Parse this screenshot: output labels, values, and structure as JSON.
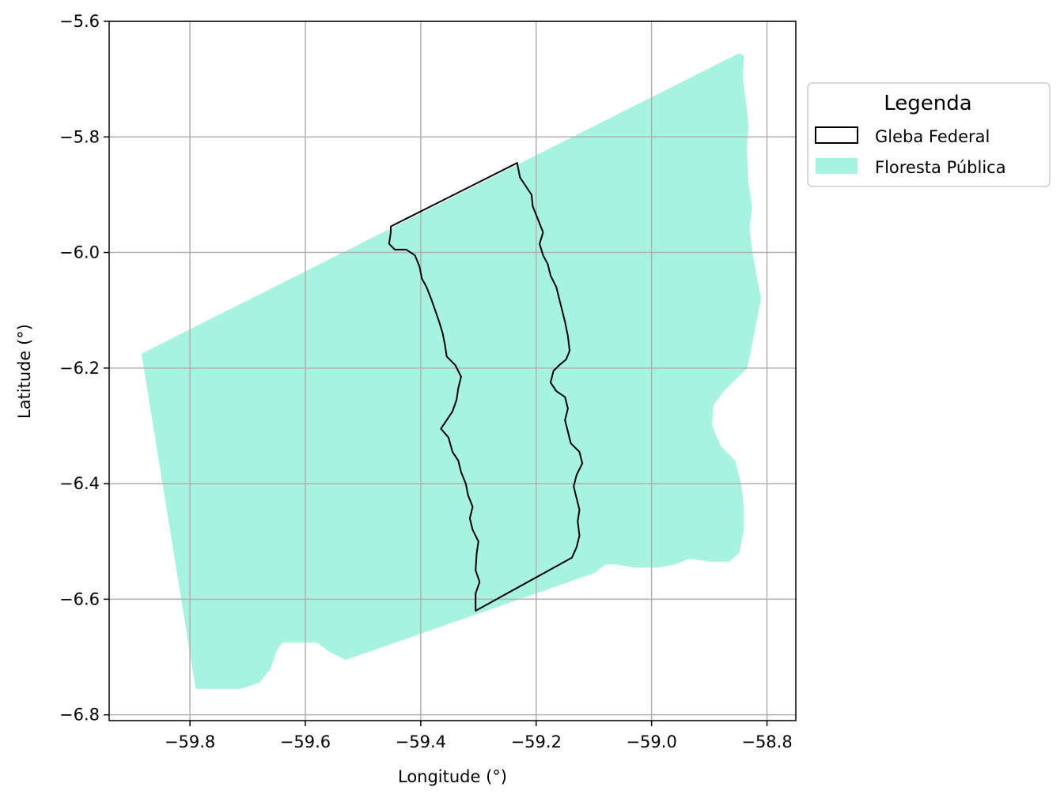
{
  "chart_data": {
    "type": "map",
    "xlabel": "Longitude (°)",
    "ylabel": "Latitude (°)",
    "xlim": [
      -59.94,
      -58.75
    ],
    "ylim": [
      -6.81,
      -5.6
    ],
    "xticks": [
      -59.8,
      -59.6,
      -59.4,
      -59.2,
      -59.0,
      -58.8
    ],
    "xtick_labels": [
      "−59.8",
      "−59.6",
      "−59.4",
      "−59.2",
      "−59.0",
      "−58.8"
    ],
    "yticks": [
      -5.6,
      -5.8,
      -6.0,
      -6.2,
      -6.4,
      -6.6,
      -6.8
    ],
    "ytick_labels": [
      "−5.6",
      "−5.8",
      "−6.0",
      "−6.2",
      "−6.4",
      "−6.6",
      "−6.8"
    ],
    "grid": true,
    "legend": {
      "title": "Legenda",
      "placement": "outside right, top",
      "entries": [
        {
          "label": "Gleba Federal",
          "style": "outline",
          "color": "#000000"
        },
        {
          "label": "Floresta Pública",
          "style": "fill",
          "color": "#a8f3df"
        }
      ]
    },
    "layers": [
      {
        "name": "Floresta Pública",
        "fill": "#a8f3df",
        "coords": [
          [
            -59.884,
            -6.175
          ],
          [
            -58.848,
            -5.655
          ],
          [
            -58.84,
            -5.66
          ],
          [
            -58.842,
            -5.7
          ],
          [
            -58.836,
            -5.74
          ],
          [
            -58.832,
            -5.78
          ],
          [
            -58.835,
            -5.82
          ],
          [
            -58.832,
            -5.88
          ],
          [
            -58.826,
            -5.92
          ],
          [
            -58.83,
            -5.96
          ],
          [
            -58.825,
            -6.0
          ],
          [
            -58.818,
            -6.04
          ],
          [
            -58.81,
            -6.08
          ],
          [
            -58.818,
            -6.12
          ],
          [
            -58.826,
            -6.16
          ],
          [
            -58.834,
            -6.2
          ],
          [
            -58.855,
            -6.22
          ],
          [
            -58.875,
            -6.24
          ],
          [
            -58.893,
            -6.265
          ],
          [
            -58.895,
            -6.3
          ],
          [
            -58.88,
            -6.335
          ],
          [
            -58.855,
            -6.36
          ],
          [
            -58.845,
            -6.4
          ],
          [
            -58.84,
            -6.44
          ],
          [
            -58.84,
            -6.48
          ],
          [
            -58.848,
            -6.52
          ],
          [
            -58.866,
            -6.535
          ],
          [
            -58.896,
            -6.535
          ],
          [
            -58.935,
            -6.53
          ],
          [
            -58.96,
            -6.54
          ],
          [
            -58.99,
            -6.545
          ],
          [
            -59.03,
            -6.545
          ],
          [
            -59.06,
            -6.54
          ],
          [
            -59.08,
            -6.54
          ],
          [
            -59.1,
            -6.555
          ],
          [
            -59.53,
            -6.705
          ],
          [
            -59.56,
            -6.69
          ],
          [
            -59.58,
            -6.675
          ],
          [
            -59.64,
            -6.675
          ],
          [
            -59.65,
            -6.69
          ],
          [
            -59.66,
            -6.72
          ],
          [
            -59.68,
            -6.745
          ],
          [
            -59.712,
            -6.755
          ],
          [
            -59.79,
            -6.755
          ]
        ]
      },
      {
        "name": "Gleba Federal",
        "stroke": "#000000",
        "coords": [
          [
            -59.452,
            -5.955
          ],
          [
            -59.233,
            -5.845
          ],
          [
            -59.228,
            -5.87
          ],
          [
            -59.218,
            -5.885
          ],
          [
            -59.208,
            -5.9
          ],
          [
            -59.206,
            -5.92
          ],
          [
            -59.196,
            -5.945
          ],
          [
            -59.188,
            -5.965
          ],
          [
            -59.194,
            -5.985
          ],
          [
            -59.188,
            -6.005
          ],
          [
            -59.18,
            -6.02
          ],
          [
            -59.175,
            -6.04
          ],
          [
            -59.165,
            -6.06
          ],
          [
            -59.16,
            -6.08
          ],
          [
            -59.155,
            -6.1
          ],
          [
            -59.15,
            -6.12
          ],
          [
            -59.145,
            -6.145
          ],
          [
            -59.142,
            -6.17
          ],
          [
            -59.148,
            -6.185
          ],
          [
            -59.16,
            -6.195
          ],
          [
            -59.17,
            -6.205
          ],
          [
            -59.175,
            -6.225
          ],
          [
            -59.165,
            -6.24
          ],
          [
            -59.15,
            -6.25
          ],
          [
            -59.145,
            -6.27
          ],
          [
            -59.15,
            -6.29
          ],
          [
            -59.145,
            -6.31
          ],
          [
            -59.14,
            -6.33
          ],
          [
            -59.125,
            -6.345
          ],
          [
            -59.12,
            -6.365
          ],
          [
            -59.13,
            -6.385
          ],
          [
            -59.135,
            -6.405
          ],
          [
            -59.13,
            -6.425
          ],
          [
            -59.125,
            -6.445
          ],
          [
            -59.128,
            -6.465
          ],
          [
            -59.125,
            -6.49
          ],
          [
            -59.13,
            -6.51
          ],
          [
            -59.138,
            -6.528
          ],
          [
            -59.305,
            -6.62
          ],
          [
            -59.305,
            -6.59
          ],
          [
            -59.298,
            -6.57
          ],
          [
            -59.305,
            -6.55
          ],
          [
            -59.303,
            -6.52
          ],
          [
            -59.3,
            -6.5
          ],
          [
            -59.31,
            -6.48
          ],
          [
            -59.315,
            -6.46
          ],
          [
            -59.31,
            -6.44
          ],
          [
            -59.318,
            -6.42
          ],
          [
            -59.322,
            -6.4
          ],
          [
            -59.33,
            -6.38
          ],
          [
            -59.335,
            -6.36
          ],
          [
            -59.345,
            -6.345
          ],
          [
            -59.352,
            -6.32
          ],
          [
            -59.365,
            -6.305
          ],
          [
            -59.355,
            -6.29
          ],
          [
            -59.345,
            -6.275
          ],
          [
            -59.338,
            -6.255
          ],
          [
            -59.335,
            -6.235
          ],
          [
            -59.33,
            -6.215
          ],
          [
            -59.34,
            -6.195
          ],
          [
            -59.355,
            -6.18
          ],
          [
            -59.358,
            -6.16
          ],
          [
            -59.362,
            -6.14
          ],
          [
            -59.368,
            -6.12
          ],
          [
            -59.375,
            -6.1
          ],
          [
            -59.382,
            -6.08
          ],
          [
            -59.39,
            -6.06
          ],
          [
            -59.398,
            -6.045
          ],
          [
            -59.402,
            -6.025
          ],
          [
            -59.41,
            -6.005
          ],
          [
            -59.425,
            -5.995
          ],
          [
            -59.445,
            -5.995
          ],
          [
            -59.455,
            -5.985
          ],
          [
            -59.452,
            -5.965
          ]
        ]
      }
    ]
  }
}
